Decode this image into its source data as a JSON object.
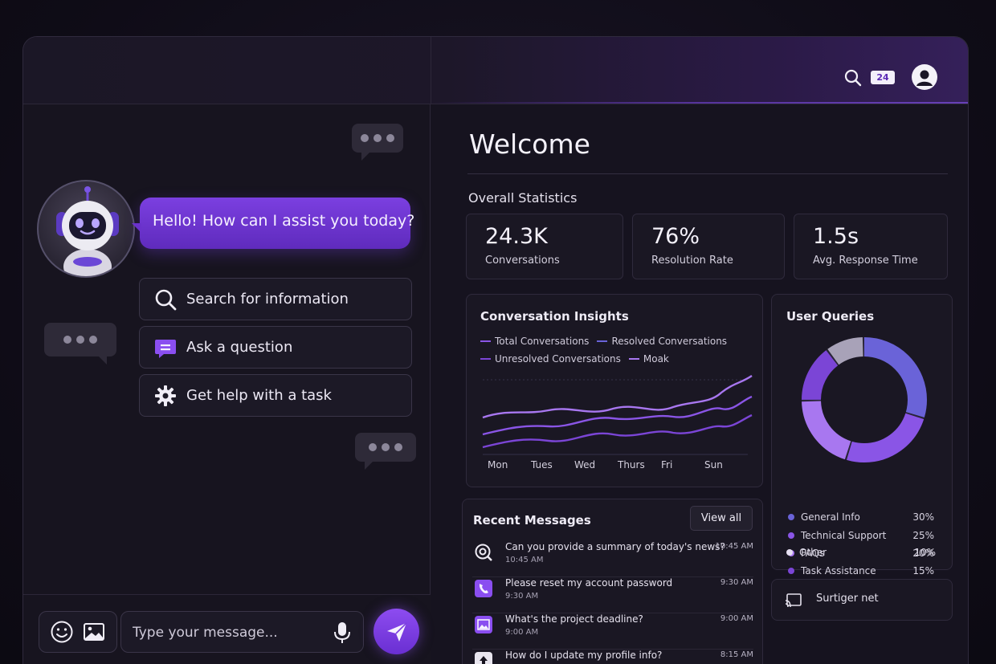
{
  "topbar": {
    "badge": "24"
  },
  "chat": {
    "greeting": "Hello! How can I assist you today?",
    "actions": [
      {
        "label": "Search for information",
        "icon": "search-icon"
      },
      {
        "label": "Ask a question",
        "icon": "chat-icon"
      },
      {
        "label": "Get help with a task",
        "icon": "gear-icon"
      }
    ],
    "input_placeholder": "Type your message..."
  },
  "dashboard": {
    "welcome": "Welcome",
    "overall_title": "Overall Statistics",
    "stats": [
      {
        "value": "24.3K",
        "label": "Conversations"
      },
      {
        "value": "76%",
        "label": "Resolution Rate"
      },
      {
        "value": "1.5s",
        "label": "Avg. Response Time"
      }
    ],
    "insights": {
      "title": "Conversation Insights",
      "legend": [
        "Total Conversations",
        "Resolved Conversations",
        "Unresolved Conversations",
        "Moak"
      ],
      "days": [
        "Mon",
        "Tues",
        "Wed",
        "Thurs",
        "Fri",
        "Sun"
      ]
    },
    "queries": {
      "title": "User Queries",
      "items": [
        {
          "name": "General Info",
          "pct": "30%",
          "color": "#6a63d8"
        },
        {
          "name": "Technical Support",
          "pct": "25%",
          "color": "#8a55e6"
        },
        {
          "name": "FAQs",
          "pct": "20%",
          "color": "#a877f0"
        },
        {
          "name": "Task Assistance",
          "pct": "15%",
          "color": "#7b45d6"
        },
        {
          "name": "Other",
          "pct": "10%",
          "color": "#e6e0f2"
        }
      ]
    },
    "surtiger": "Surtiger net",
    "recent": {
      "title": "Recent Messages",
      "view_all": "View all",
      "items": [
        {
          "text": "Can you provide a summary of today's news?",
          "sub": "10:45 AM",
          "time": "10:45 AM",
          "icon": "search-icon"
        },
        {
          "text": "Please reset my account password",
          "sub": "9:30 AM",
          "time": "9:30 AM",
          "icon": "phone-icon"
        },
        {
          "text": "What's the project deadline?",
          "sub": "9:00 AM",
          "time": "9:00 AM",
          "icon": "image-icon"
        },
        {
          "text": "How do I update my profile info?",
          "sub": "",
          "time": "8:15 AM",
          "icon": "upload-icon"
        }
      ]
    }
  },
  "colors": {
    "accent": "#7b3fe0",
    "accent_light": "#a877f0"
  }
}
